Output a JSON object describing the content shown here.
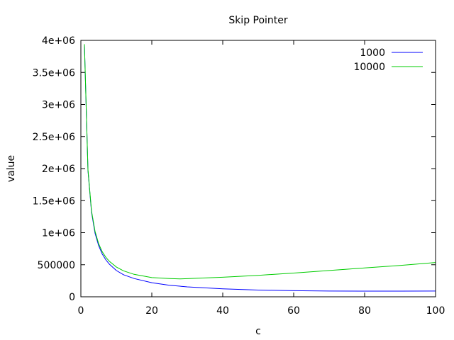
{
  "chart_data": {
    "type": "line",
    "title": "Skip Pointer",
    "xlabel": "c",
    "ylabel": "value",
    "xlim": [
      0,
      100
    ],
    "ylim": [
      0,
      4000000
    ],
    "x_ticks": [
      "0",
      "20",
      "40",
      "60",
      "80",
      "100"
    ],
    "y_ticks": [
      "0",
      "500000",
      "1e+06",
      "1.5e+06",
      "2e+06",
      "2.5e+06",
      "3e+06",
      "3.5e+06",
      "4e+06"
    ],
    "legend_position": "top-right",
    "grid": false,
    "series": [
      {
        "name": "1000",
        "color": "#0000ff",
        "x": [
          1,
          2,
          3,
          4,
          5,
          6,
          7,
          8,
          10,
          12,
          15,
          20,
          25,
          30,
          40,
          50,
          60,
          70,
          80,
          90,
          100
        ],
        "y": [
          3930000,
          1970000,
          1320000,
          990000,
          800000,
          670000,
          580000,
          510000,
          410000,
          345000,
          285000,
          220000,
          180000,
          155000,
          125000,
          105000,
          95000,
          90000,
          88000,
          88000,
          90000
        ]
      },
      {
        "name": "10000",
        "color": "#00cc00",
        "x": [
          1,
          2,
          3,
          4,
          5,
          6,
          7,
          8,
          10,
          12,
          15,
          20,
          25,
          28,
          30,
          40,
          50,
          60,
          70,
          80,
          90,
          100
        ],
        "y": [
          3940000,
          1985000,
          1340000,
          1020000,
          830000,
          705000,
          620000,
          555000,
          465000,
          405000,
          350000,
          300000,
          285000,
          280000,
          283000,
          305000,
          335000,
          370000,
          410000,
          450000,
          490000,
          535000
        ]
      }
    ]
  }
}
